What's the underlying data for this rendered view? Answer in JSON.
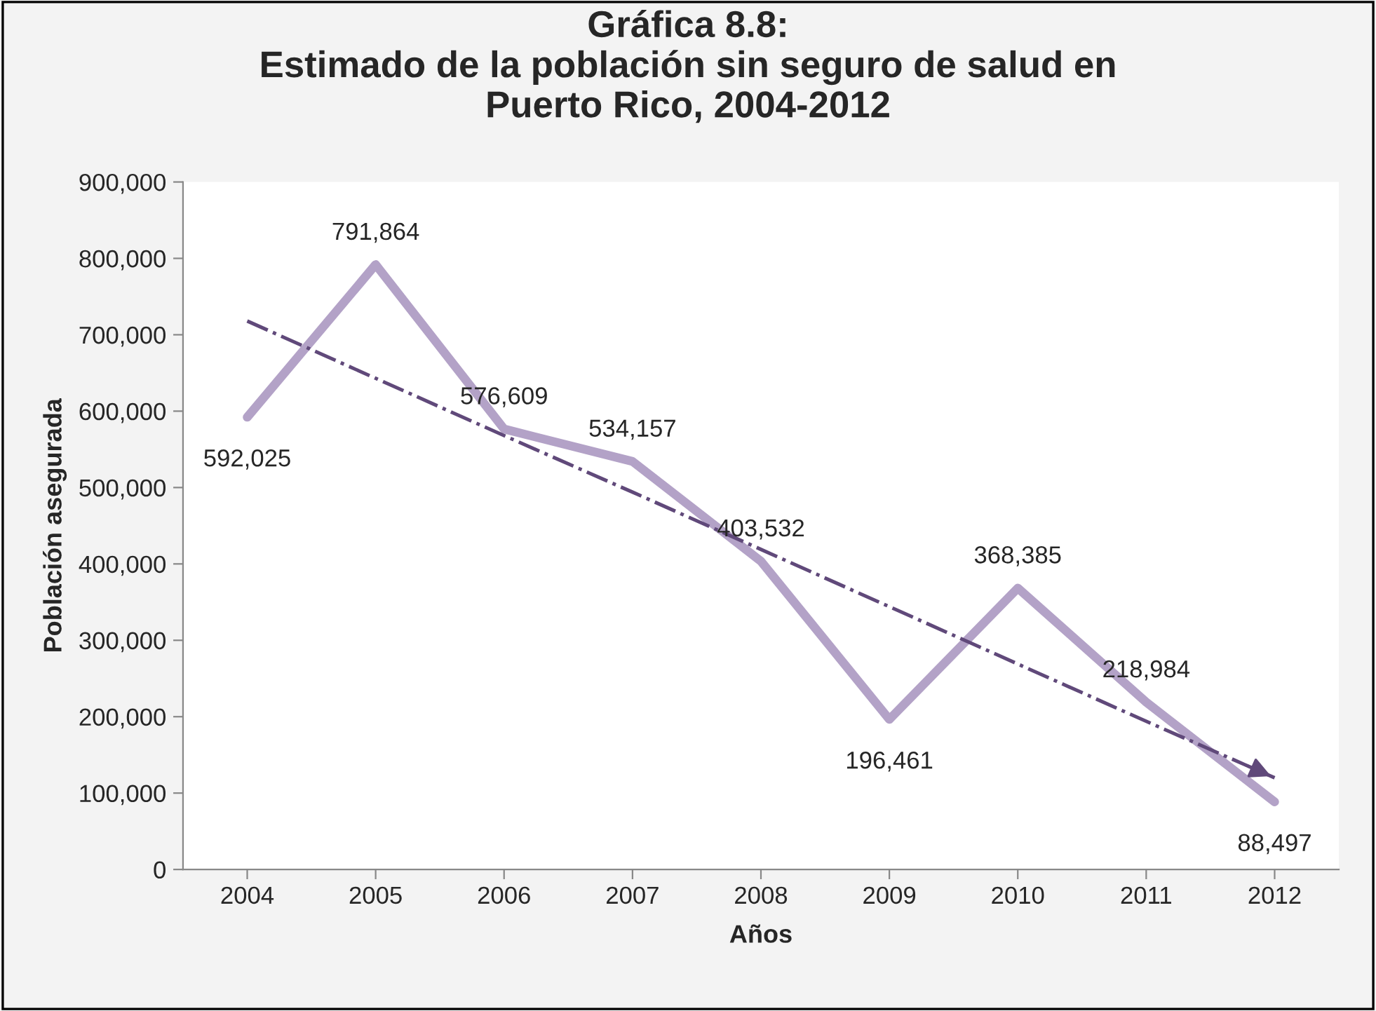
{
  "chart_data": {
    "type": "line",
    "title": "Gráfica 8.8:\nEstimado de la población sin seguro de salud en\nPuerto Rico, 2004-2012",
    "xlabel": "Años",
    "ylabel": "Población asegurada",
    "categories": [
      "2004",
      "2005",
      "2006",
      "2007",
      "2008",
      "2009",
      "2010",
      "2011",
      "2012"
    ],
    "series": [
      {
        "color": "#b3a2c7",
        "values": [
          592025,
          791864,
          576609,
          534157,
          403532,
          196461,
          368385,
          218984,
          88497
        ],
        "value_labels": [
          "592,025",
          "791,864",
          "576,609",
          "534,157",
          "403,532",
          "196,461",
          "368,385",
          "218,984",
          "88,497"
        ]
      },
      {
        "type": "line",
        "color": "#60497a",
        "values": [
          718000,
          643000,
          568000,
          494000,
          419000,
          344000,
          269000,
          194000,
          120000
        ],
        "line_style": "dashdot"
      }
    ],
    "ylim": [
      0,
      900000
    ],
    "yticks": [
      0,
      {
        "value": 100000,
        "label": "100,000"
      },
      {
        "value": 200000,
        "label": "200,000"
      },
      {
        "value": 300000,
        "label": "300,000"
      },
      {
        "value": 400000,
        "label": "400,000"
      },
      {
        "value": 500000,
        "label": "500,000"
      },
      {
        "value": 600000,
        "label": "600,000"
      },
      {
        "value": 700000,
        "label": "700,000"
      },
      {
        "value": 800000,
        "label": "800,000"
      },
      {
        "value": 900000,
        "label": "900,000"
      }
    ],
    "grid": false
  }
}
